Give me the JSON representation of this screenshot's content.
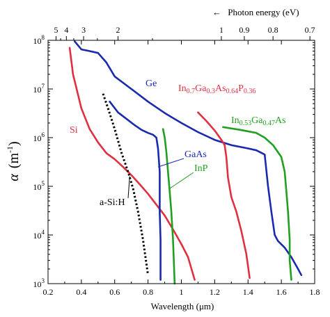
{
  "chart_data": {
    "type": "line",
    "xlabel_pre": "Wavelength (",
    "xlabel_unit": "μm",
    "xlabel_post": ")",
    "ylabel_alpha": "α",
    "ylabel_pre": "(m",
    "ylabel_sup": "-1",
    "ylabel_post": ")",
    "top_axis_label": "Photon energy (eV)",
    "top_axis_arrow": "←",
    "xlim": [
      0.2,
      1.8
    ],
    "ylim": [
      1000,
      100000000
    ],
    "yscale": "log",
    "grid": false,
    "x_ticks": [
      "0.2",
      "0.4",
      "0.6",
      "0.8",
      "1",
      "1.2",
      "1.4",
      "1.6",
      "1.8"
    ],
    "y_ticks": [
      {
        "base": "10",
        "exp": "3"
      },
      {
        "base": "10",
        "exp": "4"
      },
      {
        "base": "10",
        "exp": "5"
      },
      {
        "base": "10",
        "exp": "6"
      },
      {
        "base": "10",
        "exp": "7"
      },
      {
        "base": "10",
        "exp": "8"
      }
    ],
    "top_ticks": [
      {
        "energy": 5,
        "label": "5"
      },
      {
        "energy": 4,
        "label": "4"
      },
      {
        "energy": 3,
        "label": "3"
      },
      {
        "energy": 2,
        "label": "2"
      },
      {
        "energy": 1,
        "label": "1"
      },
      {
        "energy": 0.9,
        "label": "0.9"
      },
      {
        "energy": 0.8,
        "label": "0.8"
      },
      {
        "energy": 0.7,
        "label": "0.7"
      }
    ],
    "series": [
      {
        "key": "si",
        "name": "Si",
        "color": "#e03040",
        "dash": false,
        "points": [
          [
            0.33,
            70000000
          ],
          [
            0.35,
            20000000
          ],
          [
            0.4,
            4000000
          ],
          [
            0.45,
            1500000
          ],
          [
            0.5,
            800000
          ],
          [
            0.55,
            480000
          ],
          [
            0.6,
            360000
          ],
          [
            0.65,
            250000
          ],
          [
            0.7,
            170000
          ],
          [
            0.75,
            110000
          ],
          [
            0.8,
            70000
          ],
          [
            0.85,
            42000
          ],
          [
            0.9,
            25000
          ],
          [
            0.95,
            13000
          ],
          [
            1.0,
            6500
          ],
          [
            1.04,
            3500
          ],
          [
            1.08,
            1200
          ]
        ]
      },
      {
        "key": "ge",
        "name": "Ge",
        "color": "#1a2ab0",
        "dash": false,
        "points": [
          [
            0.36,
            95000000
          ],
          [
            0.4,
            65000000
          ],
          [
            0.45,
            60000000
          ],
          [
            0.5,
            55000000
          ],
          [
            0.55,
            35000000
          ],
          [
            0.6,
            18000000
          ],
          [
            0.7,
            10000000
          ],
          [
            0.8,
            5500000
          ],
          [
            0.9,
            3200000
          ],
          [
            1.0,
            2000000
          ],
          [
            1.1,
            1300000
          ],
          [
            1.2,
            900000
          ],
          [
            1.3,
            700000
          ],
          [
            1.4,
            600000
          ],
          [
            1.45,
            550000
          ],
          [
            1.5,
            450000
          ],
          [
            1.52,
            100000
          ],
          [
            1.54,
            30000
          ],
          [
            1.56,
            10000
          ],
          [
            1.58,
            7500
          ],
          [
            1.62,
            5500
          ],
          [
            1.66,
            3500
          ],
          [
            1.7,
            2000
          ],
          [
            1.72,
            1500
          ]
        ]
      },
      {
        "key": "gaas",
        "name": "GaAs",
        "color": "#1a2ab0",
        "dash": false,
        "points": [
          [
            0.57,
            5500000
          ],
          [
            0.62,
            3300000
          ],
          [
            0.68,
            2300000
          ],
          [
            0.72,
            1800000
          ],
          [
            0.76,
            1450000
          ],
          [
            0.8,
            1250000
          ],
          [
            0.83,
            1150000
          ],
          [
            0.85,
            1000000
          ],
          [
            0.86,
            600000
          ],
          [
            0.87,
            200000
          ],
          [
            0.87,
            30000
          ],
          [
            0.875,
            8000
          ],
          [
            0.875,
            1200
          ]
        ]
      },
      {
        "key": "inp",
        "name": "InP",
        "color": "#20a020",
        "dash": false,
        "points": [
          [
            0.89,
            1500000
          ],
          [
            0.9,
            1000000
          ],
          [
            0.91,
            500000
          ],
          [
            0.92,
            200000
          ],
          [
            0.93,
            80000
          ],
          [
            0.94,
            30000
          ],
          [
            0.95,
            8000
          ],
          [
            0.96,
            1000
          ]
        ]
      },
      {
        "key": "ingaasp",
        "name_main": "In",
        "name_sub1": "0.7",
        "name_mid1": "Ga",
        "name_sub2": "0.3",
        "name_mid2": "As",
        "name_sub3": "0.64",
        "name_mid3": "P",
        "name_sub4": "0.36",
        "color": "#e03040",
        "dash": false,
        "points": [
          [
            1.1,
            3300000
          ],
          [
            1.15,
            2200000
          ],
          [
            1.2,
            1400000
          ],
          [
            1.24,
            900000
          ],
          [
            1.26,
            700000
          ],
          [
            1.27,
            400000
          ],
          [
            1.28,
            150000
          ],
          [
            1.3,
            60000
          ],
          [
            1.33,
            30000
          ],
          [
            1.36,
            12000
          ],
          [
            1.39,
            4000
          ],
          [
            1.41,
            1300
          ]
        ]
      },
      {
        "key": "ingaas",
        "name_main": "In",
        "name_sub1": "0.53",
        "name_mid1": "Ga",
        "name_sub2": "0.47",
        "name_mid2": "As",
        "color": "#20a020",
        "dash": false,
        "points": [
          [
            1.25,
            1650000
          ],
          [
            1.35,
            1450000
          ],
          [
            1.45,
            1250000
          ],
          [
            1.5,
            1000000
          ],
          [
            1.55,
            700000
          ],
          [
            1.6,
            400000
          ],
          [
            1.62,
            200000
          ],
          [
            1.63,
            80000
          ],
          [
            1.64,
            30000
          ],
          [
            1.65,
            8000
          ],
          [
            1.65,
            3000
          ],
          [
            1.66,
            1200
          ]
        ]
      },
      {
        "key": "asih",
        "name": "a-Si:H",
        "color": "#000000",
        "dash": true,
        "points": [
          [
            0.53,
            8000000
          ],
          [
            0.56,
            4000000
          ],
          [
            0.6,
            1500000
          ],
          [
            0.64,
            500000
          ],
          [
            0.68,
            200000
          ],
          [
            0.71,
            90000
          ],
          [
            0.74,
            30000
          ],
          [
            0.77,
            8000
          ],
          [
            0.8,
            1500
          ]
        ]
      }
    ]
  }
}
